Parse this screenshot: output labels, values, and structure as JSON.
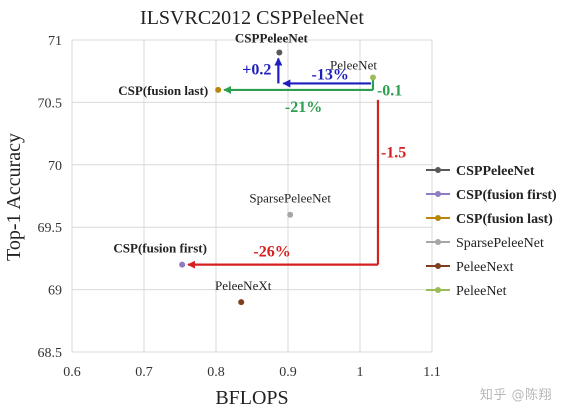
{
  "chart_data": {
    "type": "scatter",
    "title": "ILSVRC2012 CSPPeleeNet",
    "xlabel": "BFLOPS",
    "ylabel": "Top-1 Accuracy",
    "xlim": [
      0.6,
      1.1
    ],
    "ylim": [
      68.5,
      71
    ],
    "xticks": [
      "0.6",
      "0.7",
      "0.8",
      "0.9",
      "1",
      "1.1"
    ],
    "yticks": [
      "68.5",
      "69",
      "69.5",
      "70",
      "70.5",
      "71"
    ],
    "grid": true,
    "legend_position": "right",
    "series": [
      {
        "name": "CSPPeleeNet",
        "label": "CSPPeleeNet",
        "x": 0.888,
        "y": 70.9,
        "color": "#595959",
        "bold": true
      },
      {
        "name": "CSP(fusion first)",
        "label": "CSP(fusion first)",
        "x": 0.753,
        "y": 69.2,
        "color": "#8e7cc3",
        "bold": true
      },
      {
        "name": "CSP(fusion last)",
        "label": "CSP(fusion last)",
        "x": 0.803,
        "y": 70.6,
        "color": "#b8860b",
        "bold": true
      },
      {
        "name": "SparsePeleeNet",
        "label": "SparsePeleeNet",
        "x": 0.903,
        "y": 69.6,
        "color": "#a6a6a6",
        "bold": false
      },
      {
        "name": "PeleeNext",
        "label": "PeleeNeXt",
        "x": 0.835,
        "y": 68.9,
        "color": "#7f3f1f",
        "bold": false
      },
      {
        "name": "PeleeNet",
        "label": "PeleeNet",
        "x": 1.018,
        "y": 70.7,
        "color": "#9bbb59",
        "bold": false
      }
    ],
    "annotations": [
      {
        "text": "+0.2",
        "color": "#1f1fbf"
      },
      {
        "text": "-13%",
        "color": "#1f1fbf"
      },
      {
        "text": "-0.1",
        "color": "#2e9e4f"
      },
      {
        "text": "-21%",
        "color": "#2e9e4f"
      },
      {
        "text": "-1.5",
        "color": "#d42020"
      },
      {
        "text": "-26%",
        "color": "#d42020"
      }
    ]
  },
  "watermark": "知乎 @陈翔"
}
